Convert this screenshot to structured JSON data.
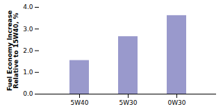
{
  "chart_data": {
    "type": "bar",
    "categories": [
      "5W40",
      "5W30",
      "0W30"
    ],
    "values": [
      1.55,
      2.65,
      3.62
    ],
    "color": "#9999cc",
    "ylabel": "Fuel Economy Increase\nRelative to 15W40, %",
    "ylim": [
      0,
      4
    ],
    "yticks": [
      0,
      1,
      2,
      3,
      4
    ],
    "grid": true
  }
}
